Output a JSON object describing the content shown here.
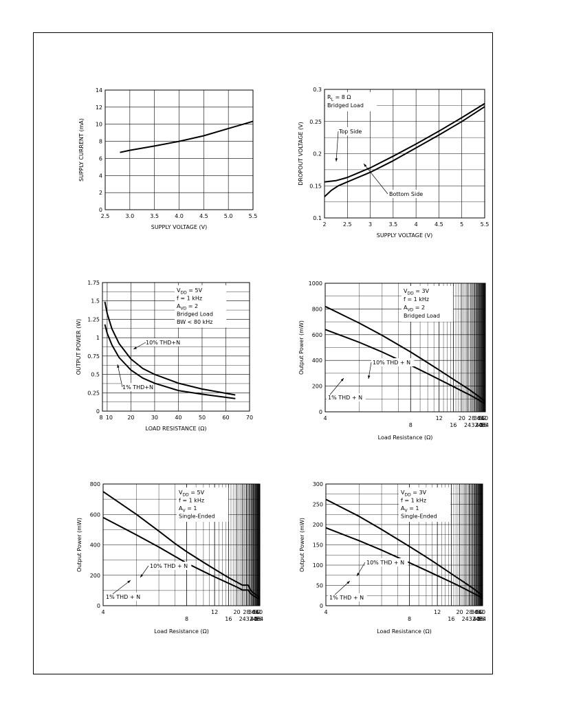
{
  "chart_data": [
    {
      "type": "line",
      "title": "",
      "xlabel": "SUPPLY VOLTAGE (V)",
      "ylabel": "SUPPLY CURRENT (mA)",
      "xlim": [
        2.5,
        5.5
      ],
      "ylim": [
        0,
        14
      ],
      "xscale": "linear",
      "grid": true,
      "xticks": [
        2.5,
        3.0,
        3.5,
        4.0,
        4.5,
        5.0,
        5.5
      ],
      "xtick_labels": [
        "2.5",
        "3.0",
        "3.5",
        "4.0",
        "4.5",
        "5.0",
        "5.5"
      ],
      "yticks": [
        0,
        2,
        4,
        6,
        8,
        10,
        12,
        14
      ],
      "ytick_labels": [
        "0",
        "2",
        "4",
        "6",
        "8",
        "10",
        "12",
        "14"
      ],
      "series": [
        {
          "x": [
            2.8,
            3.0,
            3.5,
            4.0,
            4.5,
            5.0,
            5.3,
            5.5
          ],
          "y": [
            6.7,
            6.95,
            7.45,
            8.0,
            8.65,
            9.5,
            10.0,
            10.35
          ]
        }
      ],
      "labels": [],
      "legend": []
    },
    {
      "type": "line",
      "title": "",
      "xlabel": "SUPPLY VOLTAGE (V)",
      "ylabel": "DROPOUT VOLTAGE (V)",
      "xlim": [
        2,
        5.5
      ],
      "ylim": [
        0.1,
        0.3
      ],
      "xscale": "linear",
      "grid": true,
      "xticks": [
        2,
        2.5,
        3,
        3.5,
        4,
        4.5,
        5,
        5.5
      ],
      "xtick_labels": [
        "2",
        "2.5",
        "3",
        "3.5",
        "4",
        "4.5",
        "5",
        "5.5"
      ],
      "yticks": [
        0.1,
        0.15,
        0.2,
        0.25,
        0.3
      ],
      "ytick_labels": [
        "0.1",
        "0.15",
        "0.2",
        "0.25",
        "0.3"
      ],
      "series": [
        {
          "name": "Top Side",
          "x": [
            2.0,
            2.25,
            2.5,
            3.0,
            3.5,
            4.0,
            4.5,
            5.0,
            5.5
          ],
          "y": [
            0.156,
            0.158,
            0.163,
            0.178,
            0.196,
            0.215,
            0.235,
            0.256,
            0.278
          ]
        },
        {
          "name": "Bottom Side",
          "x": [
            2.0,
            2.15,
            2.3,
            2.5,
            3.0,
            3.5,
            4.0,
            4.5,
            5.0,
            5.5
          ],
          "y": [
            0.133,
            0.143,
            0.15,
            0.156,
            0.171,
            0.189,
            0.209,
            0.229,
            0.25,
            0.273
          ]
        }
      ],
      "labels": [
        {
          "text": "Top Side",
          "x": 3.0,
          "y": 0.232
        },
        {
          "text": "Bottom Side",
          "x": 3.85,
          "y": 0.129
        }
      ],
      "legend": [
        "RL = 8 Ω",
        "Bridged Load"
      ]
    },
    {
      "type": "line",
      "title": "",
      "xlabel": "LOAD RESISTANCE (Ω)",
      "ylabel": "OUTPUT POWER (W)",
      "xlim": [
        8,
        70
      ],
      "ylim": [
        0,
        1.75
      ],
      "xscale": "linear",
      "grid": true,
      "xticks": [
        8,
        10,
        20,
        30,
        40,
        50,
        60,
        70
      ],
      "xtick_labels": [
        "8",
        "10",
        "20",
        "30",
        "40",
        "50",
        "60",
        "70"
      ],
      "yticks": [
        0,
        0.25,
        0.5,
        0.75,
        1,
        1.25,
        1.5,
        1.75
      ],
      "ytick_labels": [
        "0",
        "0.25",
        "0.5",
        "0.75",
        "1",
        "1.25",
        "1.5",
        "1.75"
      ],
      "series": [
        {
          "name": "10% THD+N",
          "x": [
            9,
            10,
            12,
            15,
            20,
            25,
            30,
            40,
            50,
            64
          ],
          "y": [
            1.49,
            1.33,
            1.12,
            0.92,
            0.71,
            0.58,
            0.5,
            0.38,
            0.3,
            0.22
          ]
        },
        {
          "name": "1% THD+N",
          "x": [
            9,
            10,
            12,
            15,
            20,
            25,
            30,
            40,
            50,
            64
          ],
          "y": [
            1.18,
            1.06,
            0.9,
            0.73,
            0.56,
            0.45,
            0.38,
            0.28,
            0.23,
            0.17
          ]
        }
      ],
      "labels": [
        {
          "text": "10% THD+N",
          "x": 23.5,
          "y": 0.88
        },
        {
          "text": "1% THD+N",
          "x": 14.2,
          "y": 0.2
        }
      ],
      "legend": [
        "VDD = 5V",
        "f = 1 kHz",
        "AVD = 2",
        "Bridged Load",
        "BW < 80 kHz"
      ]
    },
    {
      "type": "line",
      "title": "",
      "xlabel": "Load Resistance (Ω)",
      "ylabel": "Output Power (mW)",
      "xlim": [
        4,
        64
      ],
      "ylim": [
        0,
        1000
      ],
      "xscale": "reciprocal",
      "grid": true,
      "xticks": [
        4,
        8,
        12,
        16,
        20,
        24,
        28,
        32,
        36,
        40,
        44,
        48,
        52,
        56,
        60,
        64
      ],
      "xtick_labels": [
        "4",
        "8",
        "12",
        "16",
        "20",
        "24",
        "28",
        "32",
        "36",
        "40",
        "44",
        "48",
        "52",
        "56",
        "60",
        "64"
      ],
      "yticks": [
        0,
        200,
        400,
        600,
        800,
        1000
      ],
      "ytick_labels": [
        "0",
        "200",
        "400",
        "600",
        "800",
        "1000"
      ],
      "series": [
        {
          "name": "10% THD + N",
          "x": [
            4,
            5,
            6,
            8,
            10,
            12,
            16,
            20,
            24,
            32,
            40,
            48,
            56,
            64
          ],
          "y": [
            820,
            690,
            595,
            465,
            382,
            325,
            253,
            210,
            182,
            143,
            118,
            100,
            88,
            78
          ]
        },
        {
          "name": "1% THD + N",
          "x": [
            4,
            5,
            6,
            8,
            10,
            12,
            16,
            20,
            24,
            32,
            40,
            48,
            56,
            64
          ],
          "y": [
            640,
            540,
            465,
            362,
            297,
            252,
            196,
            162,
            140,
            110,
            91,
            77,
            68,
            60
          ]
        }
      ],
      "labels": [
        {
          "text": "10% THD + N",
          "x": 13,
          "y": 312
        },
        {
          "text": "1% THD + N",
          "x": 4.4,
          "y": 30
        }
      ],
      "legend": [
        "VDD = 3V",
        "f = 1 kHz",
        "AVD = 2",
        "Bridged Load"
      ]
    },
    {
      "type": "line",
      "title": "",
      "xlabel": "Load Resistance (Ω)",
      "ylabel": "Output Power (mW)",
      "xlim": [
        4,
        64
      ],
      "ylim": [
        0,
        800
      ],
      "xscale": "reciprocal",
      "grid": true,
      "xticks": [
        4,
        8,
        12,
        16,
        20,
        24,
        28,
        32,
        36,
        40,
        44,
        48,
        52,
        56,
        60,
        64
      ],
      "xtick_labels": [
        "4",
        "8",
        "12",
        "16",
        "20",
        "24",
        "28",
        "32",
        "36",
        "40",
        "44",
        "48",
        "52",
        "56",
        "60",
        "64"
      ],
      "yticks": [
        0,
        200,
        400,
        600,
        800
      ],
      "ytick_labels": [
        "0",
        "200",
        "400",
        "600",
        "800"
      ],
      "series": [
        {
          "name": "10% THD + N",
          "x": [
            4,
            5,
            6,
            7,
            8,
            10,
            12,
            16,
            20,
            24,
            27,
            30,
            32,
            34,
            40,
            48,
            56,
            64
          ],
          "y": [
            750,
            600,
            490,
            410,
            355,
            285,
            240,
            185,
            155,
            135,
            135,
            135,
            118,
            100,
            83,
            70,
            61,
            55
          ]
        },
        {
          "name": "1% THD + N",
          "x": [
            4,
            5,
            6,
            7,
            8,
            10,
            12,
            16,
            20,
            24,
            27,
            30,
            32,
            34,
            40,
            48,
            56,
            64
          ],
          "y": [
            580,
            465,
            385,
            325,
            280,
            225,
            190,
            148,
            122,
            103,
            103,
            103,
            90,
            79,
            65,
            54,
            47,
            42
          ]
        }
      ],
      "labels": [
        {
          "text": "10% THD + N",
          "x": 14,
          "y": 255
        },
        {
          "text": "1% THD + N",
          "x": 4.4,
          "y": 40
        }
      ],
      "legend": [
        "VDD = 5V",
        "f = 1 kHz",
        "AV = 1",
        "Single-Ended"
      ]
    },
    {
      "type": "line",
      "title": "",
      "xlabel": "Load Resistance (Ω)",
      "ylabel": "Output Power (mW)",
      "xlim": [
        4,
        64
      ],
      "ylim": [
        0,
        300
      ],
      "xscale": "reciprocal",
      "grid": true,
      "xticks": [
        4,
        8,
        12,
        16,
        20,
        24,
        28,
        32,
        36,
        40,
        44,
        48,
        52,
        56,
        60,
        64
      ],
      "xtick_labels": [
        "4",
        "8",
        "12",
        "16",
        "20",
        "24",
        "28",
        "32",
        "36",
        "40",
        "44",
        "48",
        "52",
        "56",
        "60",
        "64"
      ],
      "yticks": [
        0,
        50,
        100,
        150,
        200,
        250,
        300
      ],
      "ytick_labels": [
        "0",
        "50",
        "100",
        "150",
        "200",
        "250",
        "300"
      ],
      "series": [
        {
          "name": "10% THD + N",
          "x": [
            4,
            5,
            6,
            8,
            10,
            12,
            16,
            20,
            24,
            32,
            40,
            48,
            56,
            64
          ],
          "y": [
            262,
            220,
            188,
            146,
            120,
            102,
            79,
            65,
            56,
            44,
            37,
            31,
            27,
            24
          ]
        },
        {
          "name": "1% THD + N",
          "x": [
            4,
            5,
            6,
            8,
            10,
            12,
            16,
            20,
            24,
            32,
            40,
            48,
            56,
            64
          ],
          "y": [
            192,
            160,
            137,
            106,
            87,
            74,
            58,
            48,
            41,
            32,
            27,
            23,
            20,
            18
          ]
        }
      ],
      "labels": [
        {
          "text": "10% THD + N",
          "x": 13.5,
          "y": 102
        },
        {
          "text": "1% THD + N",
          "x": 4.4,
          "y": 8
        }
      ],
      "legend": [
        "VDD = 3V",
        "f = 1 kHz",
        "AV = 1",
        "Single-Ended"
      ]
    }
  ]
}
